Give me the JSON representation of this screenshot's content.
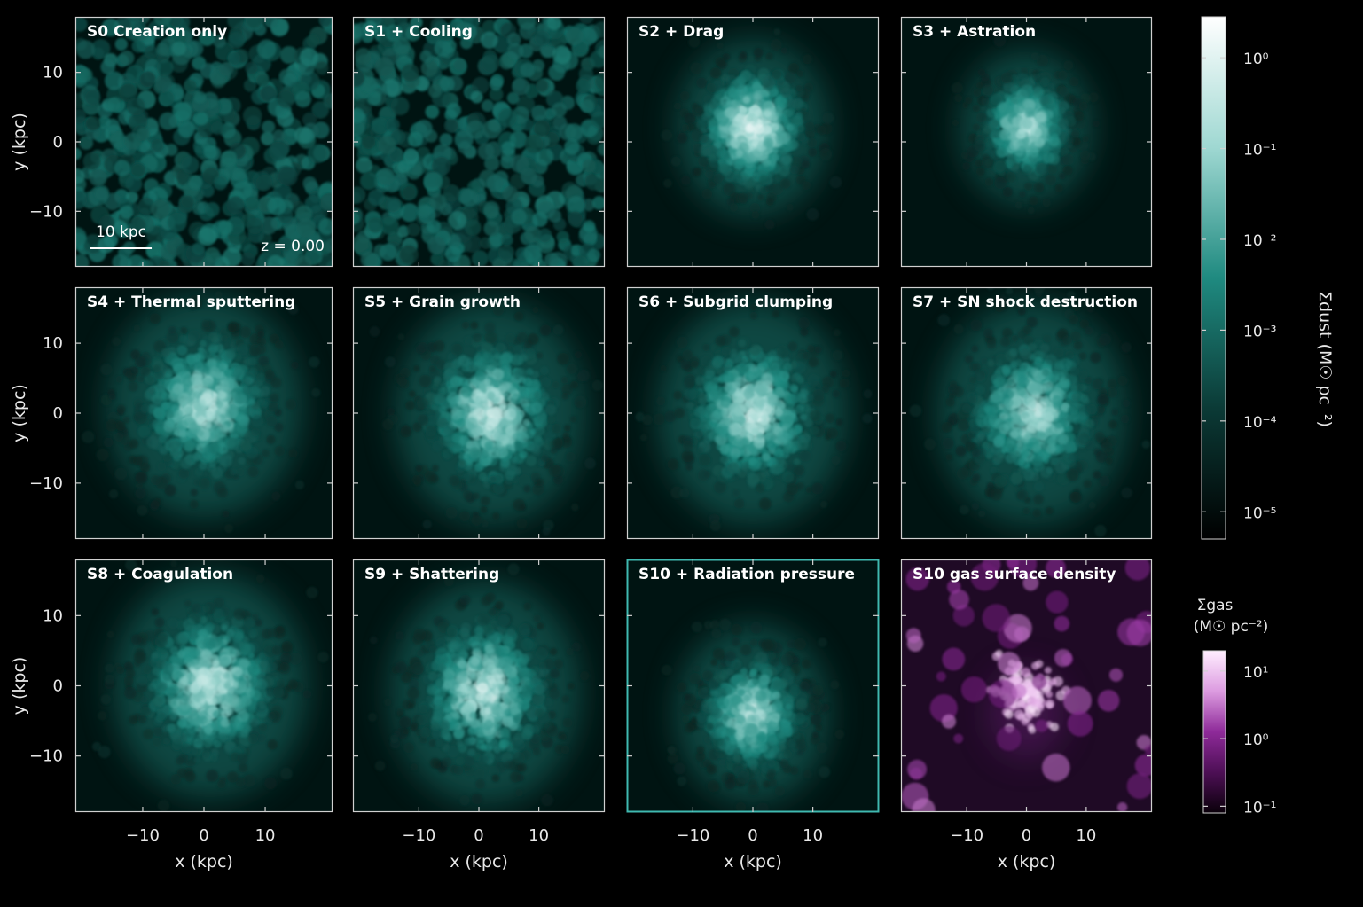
{
  "chart_data": {
    "type": "heatmap",
    "layout": "3x4 grid of projected surface density maps",
    "x_axis": {
      "label": "x (kpc)",
      "ticks": [
        -10,
        0,
        10
      ],
      "tick_labels": [
        "−10",
        "0",
        "10"
      ],
      "range": [
        -21,
        21
      ]
    },
    "y_axis": {
      "label": "y (kpc)",
      "ticks": [
        10,
        0,
        -10
      ],
      "tick_labels": [
        "10",
        "0",
        "−10"
      ],
      "range": [
        -18,
        18
      ]
    },
    "scale_bar": {
      "label": "10 kpc",
      "length_kpc": 10
    },
    "redshift_label": "z = 0.00",
    "panels": [
      {
        "id": "S0",
        "title": "S0  Creation only",
        "kind": "dust",
        "morphology": "uniform",
        "center": [
          0,
          0
        ],
        "extent": 20,
        "peak": 0.35
      },
      {
        "id": "S1",
        "title": "S1  + Cooling",
        "kind": "dust",
        "morphology": "uniform",
        "center": [
          0,
          0
        ],
        "extent": 20,
        "peak": 0.35
      },
      {
        "id": "S2",
        "title": "S2  + Drag",
        "kind": "dust",
        "morphology": "clumpy",
        "center": [
          0,
          2
        ],
        "extent": 8,
        "peak": 1.0
      },
      {
        "id": "S3",
        "title": "S3  + Astration",
        "kind": "dust",
        "morphology": "compact",
        "center": [
          0,
          2
        ],
        "extent": 7,
        "peak": 0.9
      },
      {
        "id": "S4",
        "title": "S4  + Thermal sputtering",
        "kind": "dust",
        "morphology": "diffuse",
        "center": [
          0,
          1
        ],
        "extent": 10,
        "peak": 0.9
      },
      {
        "id": "S5",
        "title": "S5  + Grain growth",
        "kind": "dust",
        "morphology": "diffuse",
        "center": [
          2,
          0
        ],
        "extent": 10,
        "peak": 0.95
      },
      {
        "id": "S6",
        "title": "S6  + Subgrid clumping",
        "kind": "dust",
        "morphology": "diffuse",
        "center": [
          0,
          0
        ],
        "extent": 10,
        "peak": 0.95
      },
      {
        "id": "S7",
        "title": "S7  + SN shock destruction",
        "kind": "dust",
        "morphology": "diffuse",
        "center": [
          1,
          0
        ],
        "extent": 10,
        "peak": 0.9
      },
      {
        "id": "S8",
        "title": "S8  + Coagulation",
        "kind": "dust",
        "morphology": "diffuse",
        "center": [
          1,
          0
        ],
        "extent": 10,
        "peak": 0.95
      },
      {
        "id": "S9",
        "title": "S9  + Shattering",
        "kind": "dust",
        "morphology": "diffuse",
        "center": [
          1,
          -1
        ],
        "extent": 10,
        "peak": 0.95
      },
      {
        "id": "S10",
        "title": "S10  + Radiation pressure",
        "kind": "dust",
        "morphology": "clumpy",
        "center": [
          0,
          -4
        ],
        "extent": 8,
        "peak": 0.9,
        "highlight": true
      },
      {
        "id": "S10g",
        "title": "S10  gas surface density",
        "kind": "gas",
        "morphology": "gas",
        "center": [
          0,
          -4
        ],
        "extent": 4,
        "peak": 1.0
      }
    ],
    "colorbars": [
      {
        "name": "dust",
        "label": "Σdust  (M☉ pc⁻²)",
        "scale": "log",
        "ticks": [
          "10⁰",
          "10⁻¹",
          "10⁻²",
          "10⁻³",
          "10⁻⁴",
          "10⁻⁵"
        ],
        "tick_exponents": [
          0,
          -1,
          -2,
          -3,
          -4,
          -5
        ],
        "range_exp": [
          -5.3,
          0.45
        ],
        "colors": [
          "#000000",
          "#0b3a36",
          "#1f8a80",
          "#9fd8d2",
          "#ffffff"
        ]
      },
      {
        "name": "gas",
        "label_line1": "Σgas",
        "label_line2": "(M☉ pc⁻²)",
        "scale": "log",
        "ticks": [
          "10¹",
          "10⁰",
          "10⁻¹"
        ],
        "tick_exponents": [
          1,
          0,
          -1
        ],
        "range_exp": [
          -1.1,
          1.3
        ],
        "colors": [
          "#0a000a",
          "#4d0f55",
          "#8e2a99",
          "#dc9be0",
          "#ffeeff"
        ]
      }
    ]
  }
}
